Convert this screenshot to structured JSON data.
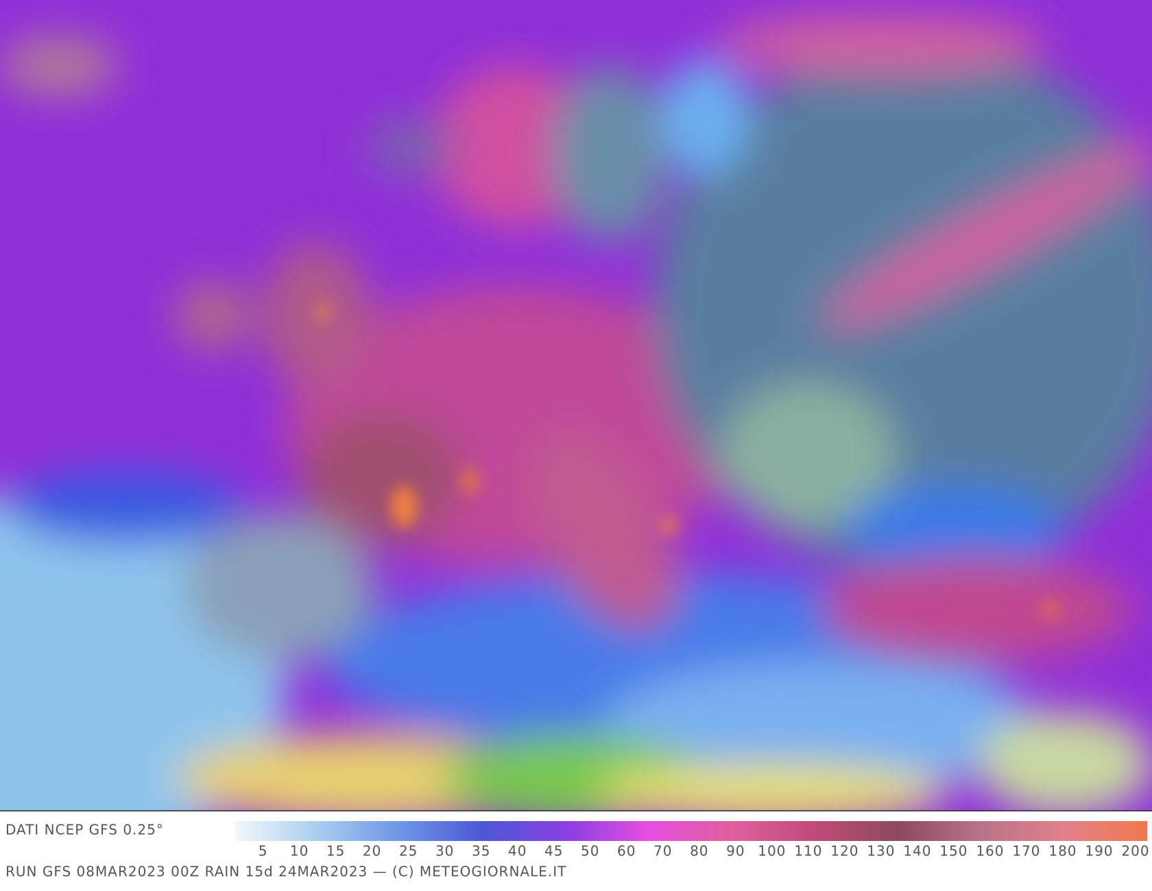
{
  "footer": {
    "source": "DATI NCEP GFS 0.25°",
    "run": "RUN GFS 08MAR2023 00Z RAIN 15d 24MAR2023 — (C) METEOGIORNALE.IT"
  },
  "legend": {
    "ticks": [
      5,
      10,
      15,
      20,
      25,
      30,
      35,
      40,
      45,
      50,
      60,
      70,
      80,
      90,
      100,
      110,
      120,
      130,
      140,
      150,
      160,
      170,
      180,
      190,
      200
    ],
    "colors": [
      "#f2f8fc",
      "#a8cdef",
      "#6f95e6",
      "#4c58d6",
      "#8a3fe2",
      "#e64fe0",
      "#e0609e",
      "#c04a78",
      "#8c4a62",
      "#b87488",
      "#e2808c",
      "#f0784c"
    ]
  }
}
